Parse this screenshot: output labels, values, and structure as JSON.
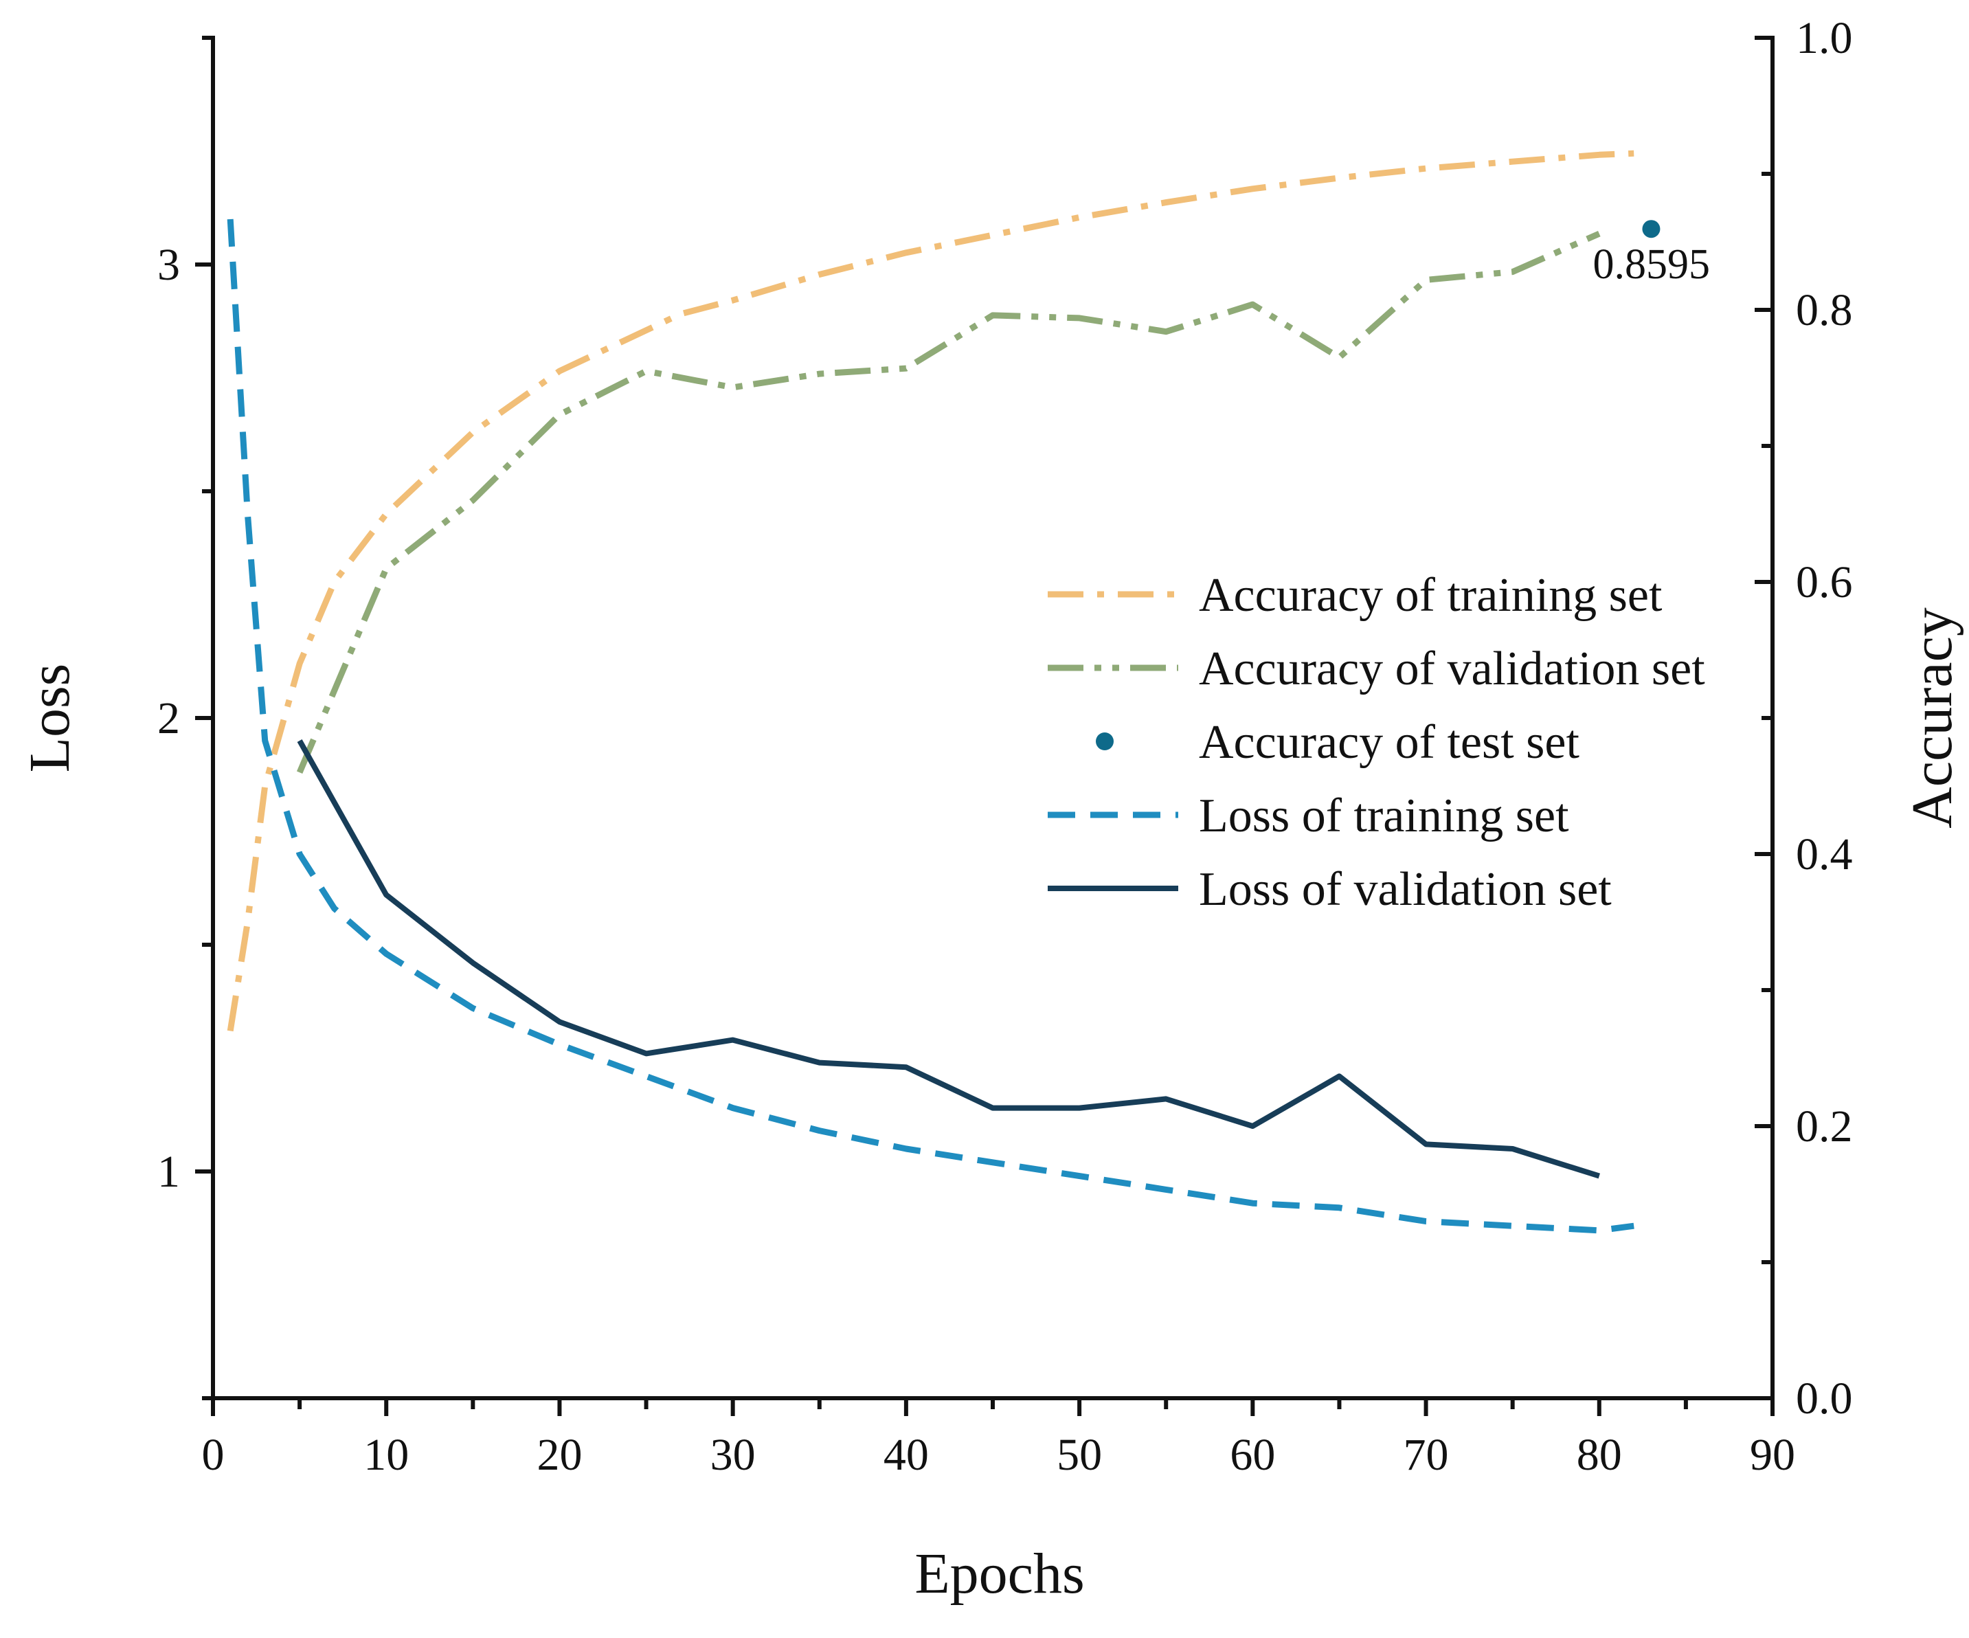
{
  "chart_data": {
    "type": "line",
    "xlabel": "Epochs",
    "ylabel_left": "Loss",
    "ylabel_right": "Accuracy",
    "xlim": [
      0,
      90
    ],
    "ylim_left": [
      0.5,
      3.5
    ],
    "ylim_right": [
      0.0,
      1.0
    ],
    "x_ticks": [
      "0",
      "10",
      "20",
      "30",
      "40",
      "50",
      "60",
      "70",
      "80",
      "90"
    ],
    "y_left_ticks": [
      "1",
      "2",
      "3"
    ],
    "y_right_ticks": [
      "0.0",
      "0.2",
      "0.4",
      "0.6",
      "0.8",
      "1.0"
    ],
    "grid": false,
    "legend_position": "center-right",
    "annotation": "0.8595",
    "series": [
      {
        "name": "Accuracy of training set",
        "axis": "right",
        "style": "dash-dot",
        "color": "#F1BE77",
        "x": [
          1,
          2,
          3,
          5,
          7,
          10,
          15,
          20,
          25,
          27,
          30,
          35,
          40,
          45,
          50,
          55,
          60,
          65,
          70,
          75,
          80,
          82
        ],
        "y": [
          0.27,
          0.35,
          0.45,
          0.54,
          0.6,
          0.65,
          0.71,
          0.755,
          0.785,
          0.797,
          0.807,
          0.826,
          0.842,
          0.855,
          0.868,
          0.879,
          0.889,
          0.897,
          0.904,
          0.909,
          0.914,
          0.915
        ]
      },
      {
        "name": "Accuracy of validation set",
        "axis": "right",
        "style": "dash-dot-dot",
        "color": "#8FAA77",
        "x": [
          5,
          10,
          15,
          20,
          25,
          30,
          35,
          40,
          45,
          50,
          55,
          60,
          65,
          70,
          75,
          80
        ],
        "y": [
          0.46,
          0.61,
          0.66,
          0.723,
          0.755,
          0.743,
          0.753,
          0.757,
          0.796,
          0.794,
          0.784,
          0.804,
          0.765,
          0.822,
          0.828,
          0.856
        ]
      },
      {
        "name": "Accuracy of test set",
        "axis": "right",
        "style": "point",
        "color": "#0E6A8A",
        "x": [
          83
        ],
        "y": [
          0.8595
        ]
      },
      {
        "name": "Loss of training set",
        "axis": "left",
        "style": "dashed",
        "color": "#1F8DC0",
        "x": [
          1,
          2,
          3,
          5,
          7,
          10,
          15,
          20,
          25,
          30,
          35,
          40,
          45,
          50,
          55,
          60,
          65,
          70,
          75,
          80,
          82
        ],
        "y": [
          3.1,
          2.45,
          1.95,
          1.7,
          1.58,
          1.48,
          1.36,
          1.28,
          1.21,
          1.14,
          1.09,
          1.05,
          1.02,
          0.99,
          0.96,
          0.93,
          0.92,
          0.89,
          0.88,
          0.87,
          0.88
        ]
      },
      {
        "name": "Loss of validation set",
        "axis": "left",
        "style": "solid",
        "color": "#173D58",
        "x": [
          5,
          10,
          15,
          20,
          25,
          30,
          35,
          40,
          45,
          50,
          55,
          60,
          65,
          70,
          75,
          80
        ],
        "y": [
          1.95,
          1.61,
          1.46,
          1.33,
          1.26,
          1.29,
          1.24,
          1.23,
          1.14,
          1.14,
          1.16,
          1.1,
          1.21,
          1.06,
          1.05,
          0.99
        ]
      }
    ]
  }
}
